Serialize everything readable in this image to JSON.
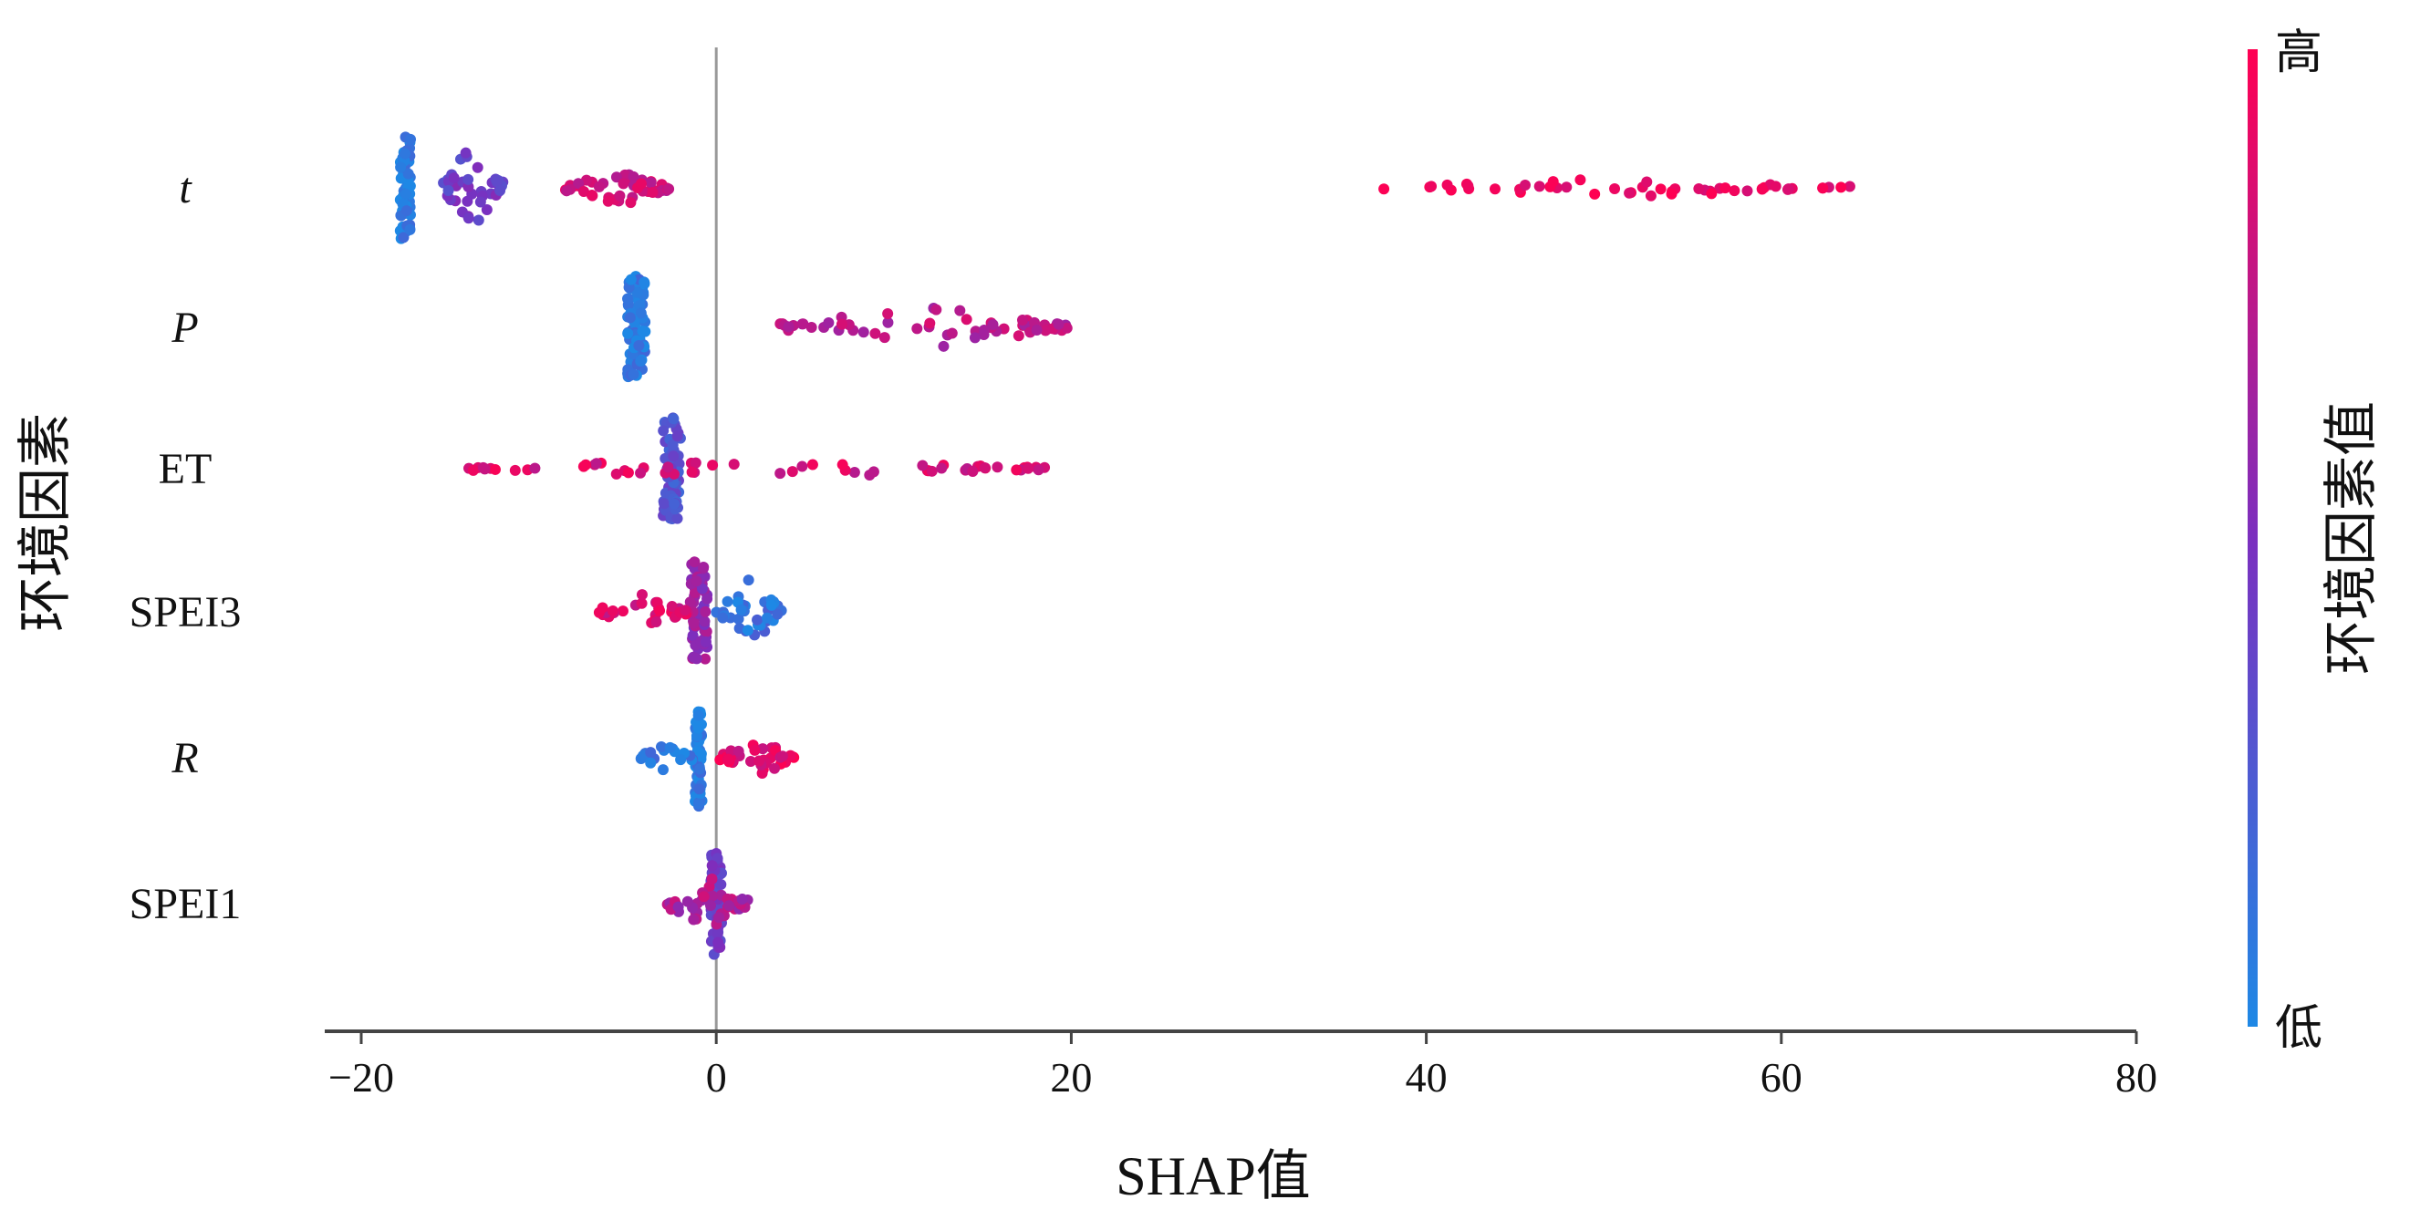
{
  "chart_data": {
    "type": "scatter",
    "subtype": "shap-beeswarm",
    "title": "",
    "xlabel": "SHAP值",
    "ylabel": "环境因素",
    "xlim": [
      -22,
      80
    ],
    "xticks": [
      -20,
      0,
      20,
      40,
      60,
      80
    ],
    "xtick_labels": [
      "−20",
      "0",
      "20",
      "40",
      "60",
      "80"
    ],
    "features": [
      {
        "label": "t",
        "italic": true,
        "clusters": [
          {
            "range": [
              -17.8,
              -17.2
            ],
            "n": 70,
            "value": 0.05,
            "spread": 1.0
          },
          {
            "range": [
              -15.5,
              -12.0
            ],
            "n": 40,
            "value": 0.42,
            "spread": 0.45
          },
          {
            "range": [
              -8.5,
              -2.5
            ],
            "n": 45,
            "value": 0.82,
            "spread": 0.2
          },
          {
            "range": [
              37.0,
              64.0
            ],
            "n": 50,
            "value": 0.95,
            "spread": 0.1
          }
        ]
      },
      {
        "label": "P",
        "italic": true,
        "clusters": [
          {
            "range": [
              -5.0,
              -4.0
            ],
            "n": 80,
            "value": 0.08,
            "spread": 1.0
          },
          {
            "range": [
              3.5,
              20.0
            ],
            "n": 60,
            "value": 0.75,
            "spread": 0.25
          }
        ]
      },
      {
        "label": "ET",
        "italic": false,
        "clusters": [
          {
            "range": [
              -3.0,
              -2.0
            ],
            "n": 70,
            "value": 0.3,
            "spread": 1.0
          },
          {
            "range": [
              -14.0,
              18.7
            ],
            "n": 60,
            "value": 0.85,
            "spread": 0.12
          }
        ]
      },
      {
        "label": "SPEI3",
        "italic": false,
        "clusters": [
          {
            "range": [
              -1.5,
              -0.5
            ],
            "n": 60,
            "value": 0.6,
            "spread": 1.0
          },
          {
            "range": [
              -7.0,
              -1.5
            ],
            "n": 30,
            "value": 0.85,
            "spread": 0.2
          },
          {
            "range": [
              0.0,
              3.8
            ],
            "n": 40,
            "value": 0.12,
            "spread": 0.35
          }
        ]
      },
      {
        "label": "R",
        "italic": true,
        "clusters": [
          {
            "range": [
              -1.2,
              -0.8
            ],
            "n": 60,
            "value": 0.05,
            "spread": 1.0
          },
          {
            "range": [
              -4.5,
              -1.2
            ],
            "n": 20,
            "value": 0.1,
            "spread": 0.15
          },
          {
            "range": [
              0.0,
              4.5
            ],
            "n": 35,
            "value": 0.88,
            "spread": 0.2
          }
        ]
      },
      {
        "label": "SPEI1",
        "italic": false,
        "clusters": [
          {
            "range": [
              -0.3,
              0.3
            ],
            "n": 60,
            "value": 0.4,
            "spread": 1.0
          },
          {
            "range": [
              -3.0,
              1.8
            ],
            "n": 40,
            "value": 0.7,
            "spread": 0.3
          }
        ]
      }
    ],
    "colorbar": {
      "label": "环境因素值",
      "high_label": "高",
      "low_label": "低",
      "low_color": "#1e88e5",
      "high_color": "#ff0052"
    },
    "grid": false,
    "zero_line": true
  }
}
